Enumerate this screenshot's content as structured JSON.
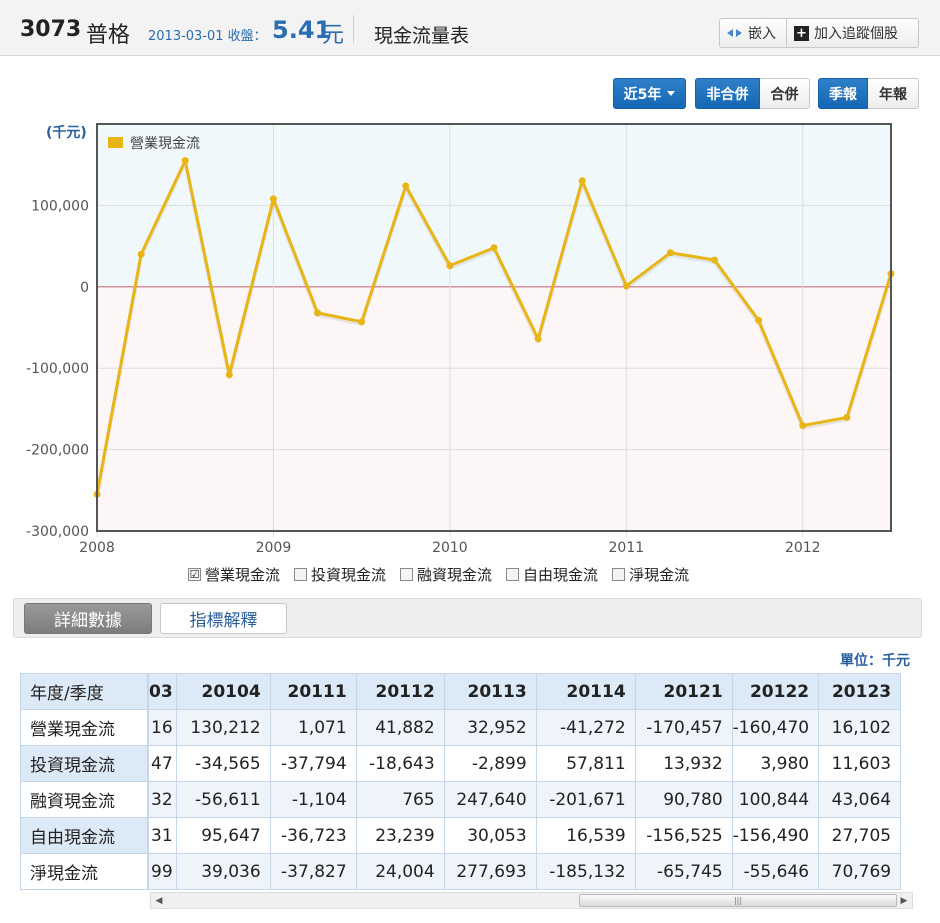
{
  "header": {
    "stock_id": "3073",
    "stock_name": "普格",
    "date_label": "2013-03-01 收盤：",
    "price": "5.41",
    "price_unit": "元",
    "page_title": "現金流量表",
    "embed_label": "嵌入",
    "track_label": "加入追蹤個股"
  },
  "controls": {
    "range_label": "近5年",
    "non_consolidated": "非合併",
    "consolidated": "合併",
    "quarterly": "季報",
    "annual": "年報"
  },
  "chart_data": {
    "type": "line",
    "ylabel": "(千元)",
    "legend": "營業現金流",
    "legend_position": "top-left",
    "color": "#e8b514",
    "x_ticks": [
      "2008",
      "2009",
      "2010",
      "2011",
      "2012"
    ],
    "y_ticks": [
      "100,000",
      "0",
      "-100,000",
      "-200,000",
      "-300,000"
    ],
    "y_tick_values": [
      100000,
      0,
      -100000,
      -200000,
      -300000
    ],
    "ylim": [
      -300000,
      200000
    ],
    "grid": true,
    "series": [
      {
        "name": "營業現金流",
        "x": [
          "20081",
          "20082",
          "20083",
          "20084",
          "20091",
          "20092",
          "20093",
          "20094",
          "20101",
          "20102",
          "20103",
          "20104",
          "20111",
          "20112",
          "20113",
          "20114",
          "20121",
          "20122",
          "20123"
        ],
        "values": [
          -255000,
          40000,
          155000,
          -108000,
          108000,
          -32000,
          -43000,
          124000,
          26000,
          48000,
          -64000,
          130212,
          1071,
          41882,
          32952,
          -41272,
          -170457,
          -160470,
          16102
        ]
      }
    ]
  },
  "series_toggles": [
    {
      "label": "營業現金流",
      "checked": "☑"
    },
    {
      "label": "投資現金流",
      "checked": ""
    },
    {
      "label": "融資現金流",
      "checked": ""
    },
    {
      "label": "自由現金流",
      "checked": ""
    },
    {
      "label": "淨現金流",
      "checked": ""
    }
  ],
  "tabs": {
    "detail": "詳細數據",
    "explain": "指標解釋"
  },
  "table": {
    "unit": "單位：千元",
    "corner": "年度/季度",
    "row_labels": [
      "營業現金流",
      "投資現金流",
      "融資現金流",
      "自由現金流",
      "淨現金流"
    ],
    "columns": [
      "03",
      "20104",
      "20111",
      "20112",
      "20113",
      "20114",
      "20121",
      "20122",
      "20123"
    ],
    "rows": [
      [
        "16",
        "130,212",
        "1,071",
        "41,882",
        "32,952",
        "-41,272",
        "-170,457",
        "-160,470",
        "16,102"
      ],
      [
        "47",
        "-34,565",
        "-37,794",
        "-18,643",
        "-2,899",
        "57,811",
        "13,932",
        "3,980",
        "11,603"
      ],
      [
        "32",
        "-56,611",
        "-1,104",
        "765",
        "247,640",
        "-201,671",
        "90,780",
        "100,844",
        "43,064"
      ],
      [
        "31",
        "95,647",
        "-36,723",
        "23,239",
        "30,053",
        "16,539",
        "-156,525",
        "-156,490",
        "27,705"
      ],
      [
        "99",
        "39,036",
        "-37,827",
        "24,004",
        "277,693",
        "-185,132",
        "-65,745",
        "-55,646",
        "70,769"
      ]
    ]
  },
  "scrollbar": {
    "left_arrow": "◀",
    "right_arrow": "▶",
    "grip": "|||"
  }
}
